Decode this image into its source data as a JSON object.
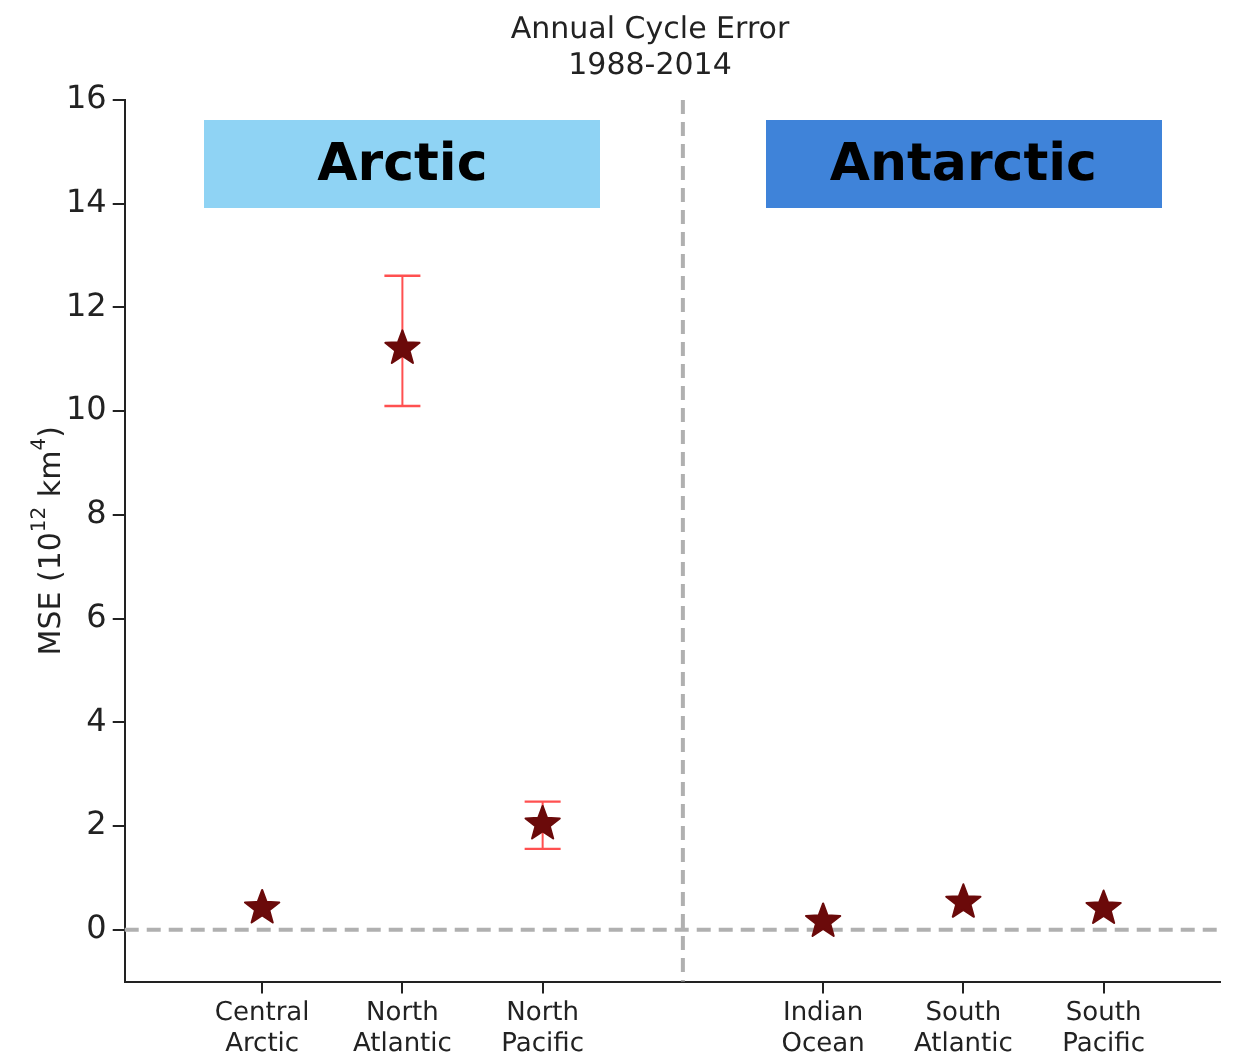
{
  "chart_data": {
    "type": "scatter",
    "title": "Annual Cycle Error\n1988-2014",
    "ylabel": "MSE (10$^{12}$ km$^{4}$)",
    "categories": [
      "Central\nArctic",
      "North\nAtlantic",
      "North\nPacific",
      null,
      "Indian\nOcean",
      "South\nAtlantic",
      "South\nPacific"
    ],
    "series": [
      {
        "color": "#6b0a0a",
        "values": [
          0.42,
          11.21,
          2.04,
          null,
          0.16,
          0.53,
          0.41
        ],
        "errors": [
          null,
          [
            10.1,
            12.61
          ],
          [
            1.56,
            2.47
          ],
          null,
          null,
          null,
          null
        ]
      }
    ],
    "ylim": [
      -1,
      16
    ],
    "yticks": [
      0,
      2,
      4,
      6,
      8,
      10,
      12,
      14,
      16
    ],
    "ref_lines": [
      {
        "axis": "y",
        "value": 0,
        "color": "#b0b0b0",
        "line_style": "dashed"
      }
    ],
    "annotations": [
      "Arctic",
      "Antarctic"
    ],
    "marker": "star",
    "legend": false
  }
}
